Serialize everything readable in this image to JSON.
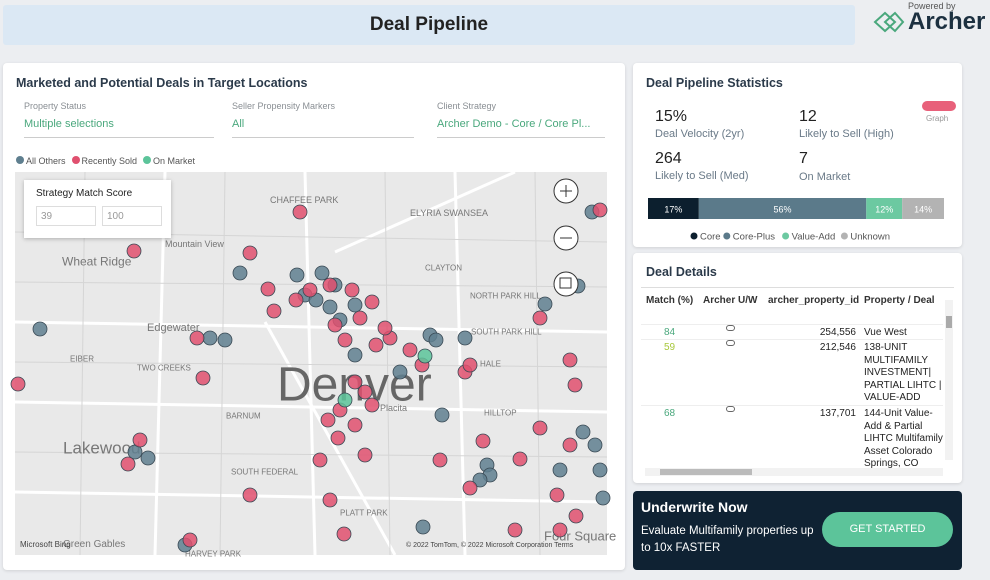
{
  "header": {
    "title": "Deal Pipeline",
    "powered_by": "Powered by",
    "brand": "Archer"
  },
  "map_panel": {
    "title": "Marketed and Potential Deals in Target Locations",
    "filters": [
      {
        "label": "Property Status",
        "value": "Multiple selections"
      },
      {
        "label": "Seller Propensity Markers",
        "value": "All"
      },
      {
        "label": "Client Strategy",
        "value": "Archer Demo - Core / Core Pl..."
      }
    ],
    "legend": [
      {
        "name": "All Others",
        "color": "#5f7f8f"
      },
      {
        "name": "Recently Sold",
        "color": "#e0506f"
      },
      {
        "name": "On Market",
        "color": "#5cc49a"
      }
    ],
    "score": {
      "title": "Strategy Match Score",
      "min": "39",
      "max": "100"
    },
    "places": [
      "CHAFFEE PARK",
      "ELYRIA SWANSEA",
      "Mountain View",
      "Wheat Ridge",
      "NORTH PARK HILL",
      "CLAYTON",
      "Edgewater",
      "SOUTH PARK HILL",
      "EIBER",
      "TWO CREEKS",
      "Denver",
      "HALE",
      "Placita",
      "BARNUM",
      "HILLTOP",
      "Lakewood",
      "SOUTH FEDERAL",
      "PLATT PARK",
      "Green Gables",
      "HARVEY PARK",
      "Four Square"
    ],
    "attribution": "Microsoft Bing",
    "copyright": "© 2022 TomTom, © 2022 Microsoft Corporation Terms"
  },
  "stats": {
    "title": "Deal Pipeline Statistics",
    "toggle": "Graph",
    "kpis": [
      {
        "value": "15%",
        "label": "Deal Velocity (2yr)"
      },
      {
        "value": "12",
        "label": "Likely to Sell (High)"
      },
      {
        "value": "264",
        "label": "Likely to Sell (Med)"
      },
      {
        "value": "7",
        "label": "On Market"
      }
    ],
    "segments": [
      {
        "name": "Core",
        "value": 17,
        "label": "17%",
        "color": "#0c1f2e"
      },
      {
        "name": "Core-Plus",
        "value": 56,
        "label": "56%",
        "color": "#5b7a8a"
      },
      {
        "name": "Value-Add",
        "value": 12,
        "label": "12%",
        "color": "#6cc9a1"
      },
      {
        "name": "Unknown",
        "value": 14,
        "label": "14%",
        "color": "#b3b3b3"
      }
    ]
  },
  "details": {
    "title": "Deal Details",
    "columns": [
      "Match (%)",
      "Archer U/W",
      "archer_property_id",
      "Property / Deal"
    ],
    "rows": [
      [
        "84",
        "254,556",
        "Vue West"
      ],
      [
        "59",
        "212,546",
        "138-UNIT MULTIFAMILY INVESTMENT| PARTIAL LIHTC | VALUE-ADD"
      ],
      [
        "68",
        "137,701",
        "144-Unit Value-Add & Partial LIHTC Multifamily Asset Colorado Springs, CO"
      ]
    ]
  },
  "cta": {
    "title": "Underwrite Now",
    "text": "Evaluate Multifamily properties up to 10x FASTER",
    "button": "GET STARTED"
  }
}
